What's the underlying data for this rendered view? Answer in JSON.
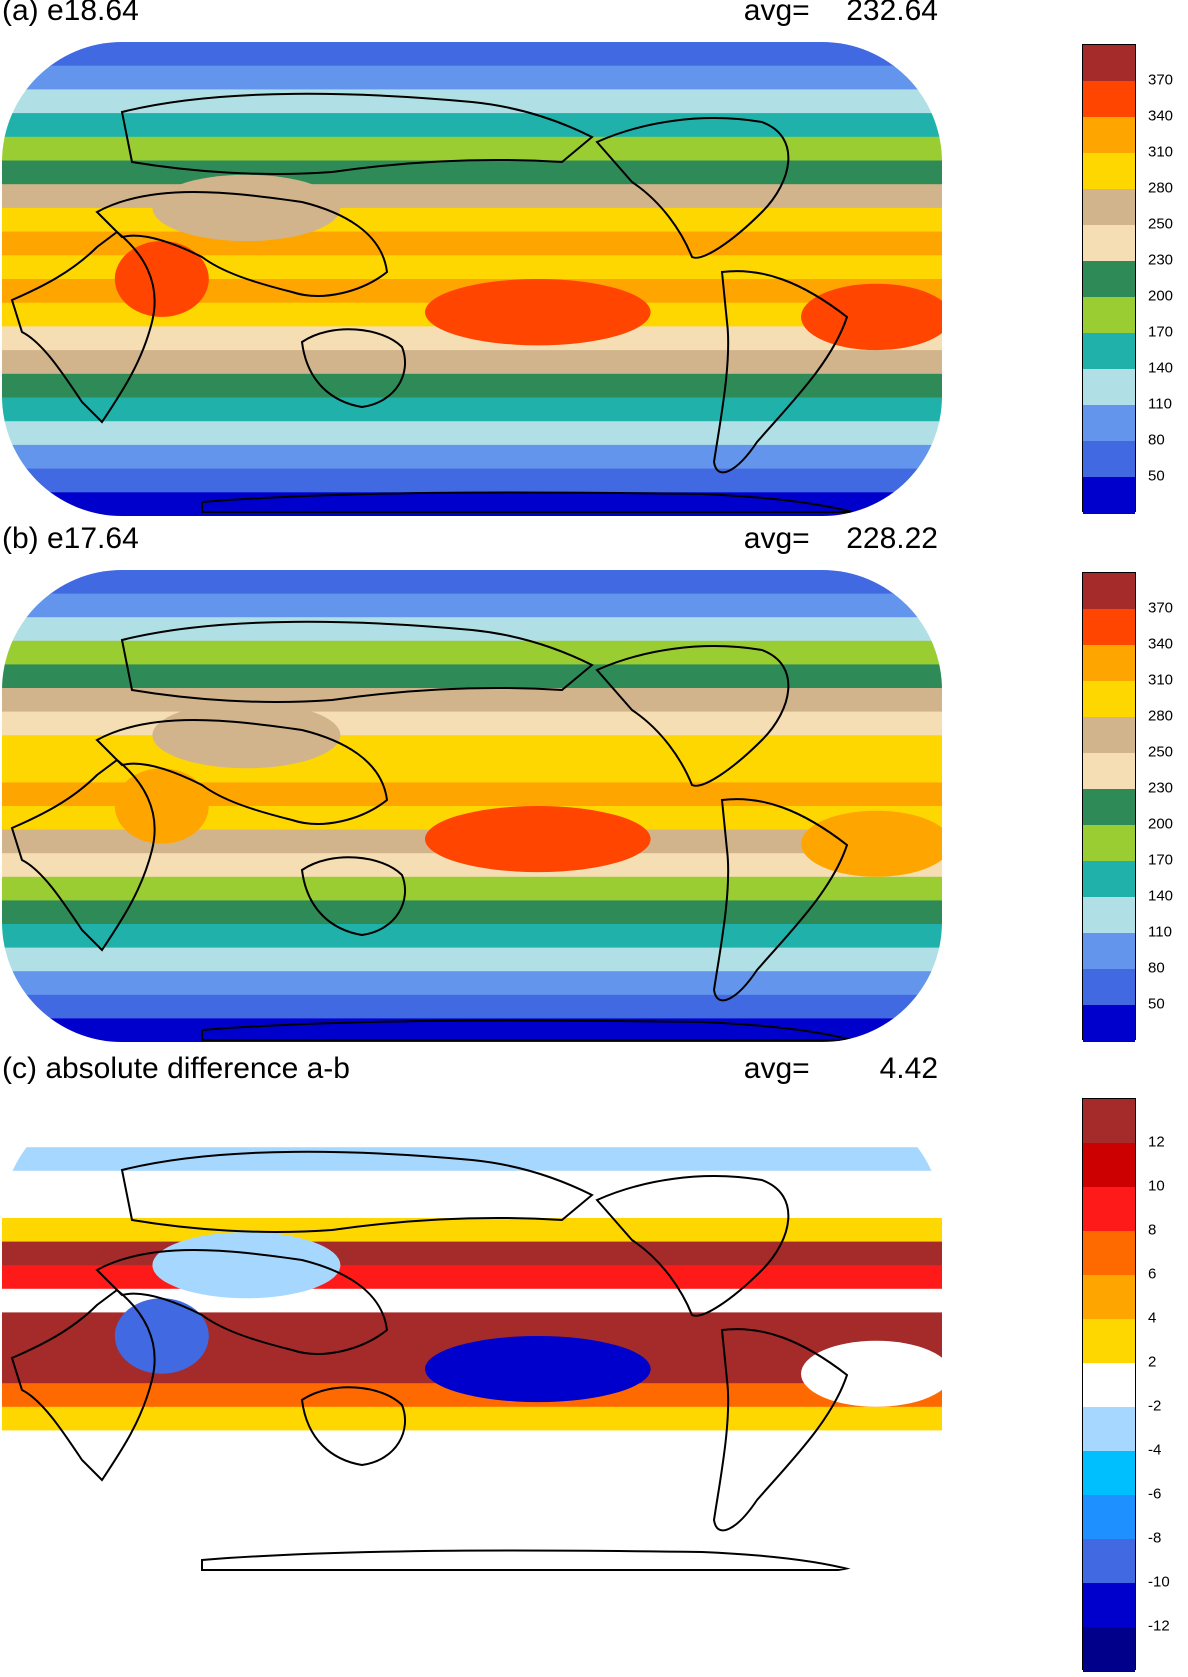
{
  "panels": [
    {
      "id": "a",
      "title": "(a) e18.64",
      "avg_label": "avg=",
      "avg_value": "232.64",
      "colorbar": {
        "labels": [
          "370",
          "340",
          "310",
          "280",
          "250",
          "230",
          "200",
          "170",
          "140",
          "110",
          "80",
          "50"
        ],
        "colors": [
          "#a52a2a",
          "#ff4500",
          "#ffa500",
          "#ffd700",
          "#d2b48c",
          "#f5deb3",
          "#2e8b57",
          "#9acd32",
          "#20b2aa",
          "#b0e0e6",
          "#6495ed",
          "#4169e1",
          "#0000cd"
        ]
      },
      "bands": [
        {
          "color": "#4169e1"
        },
        {
          "color": "#6495ed"
        },
        {
          "color": "#b0e0e6"
        },
        {
          "color": "#20b2aa"
        },
        {
          "color": "#9acd32"
        },
        {
          "color": "#2e8b57"
        },
        {
          "color": "#d2b48c"
        },
        {
          "color": "#ffd700"
        },
        {
          "color": "#ffa500"
        },
        {
          "color": "#ffd700"
        },
        {
          "color": "#ffa500"
        },
        {
          "color": "#ffd700"
        },
        {
          "color": "#f5deb3"
        },
        {
          "color": "#d2b48c"
        },
        {
          "color": "#2e8b57"
        },
        {
          "color": "#20b2aa"
        },
        {
          "color": "#b0e0e6"
        },
        {
          "color": "#6495ed"
        },
        {
          "color": "#4169e1"
        },
        {
          "color": "#0000cd"
        }
      ],
      "blobs": [
        {
          "color": "#ff4500"
        },
        {
          "color": "#ff4500"
        },
        {
          "color": "#ff4500"
        },
        {
          "color": "#d2b48c"
        }
      ]
    },
    {
      "id": "b",
      "title": "(b) e17.64",
      "avg_label": "avg=",
      "avg_value": "228.22",
      "colorbar": {
        "labels": [
          "370",
          "340",
          "310",
          "280",
          "250",
          "230",
          "200",
          "170",
          "140",
          "110",
          "80",
          "50"
        ],
        "colors": [
          "#a52a2a",
          "#ff4500",
          "#ffa500",
          "#ffd700",
          "#d2b48c",
          "#f5deb3",
          "#2e8b57",
          "#9acd32",
          "#20b2aa",
          "#b0e0e6",
          "#6495ed",
          "#4169e1",
          "#0000cd"
        ]
      },
      "bands": [
        {
          "color": "#4169e1"
        },
        {
          "color": "#6495ed"
        },
        {
          "color": "#b0e0e6"
        },
        {
          "color": "#9acd32"
        },
        {
          "color": "#2e8b57"
        },
        {
          "color": "#d2b48c"
        },
        {
          "color": "#f5deb3"
        },
        {
          "color": "#ffd700"
        },
        {
          "color": "#ffd700"
        },
        {
          "color": "#ffa500"
        },
        {
          "color": "#ffd700"
        },
        {
          "color": "#d2b48c"
        },
        {
          "color": "#f5deb3"
        },
        {
          "color": "#9acd32"
        },
        {
          "color": "#2e8b57"
        },
        {
          "color": "#20b2aa"
        },
        {
          "color": "#b0e0e6"
        },
        {
          "color": "#6495ed"
        },
        {
          "color": "#4169e1"
        },
        {
          "color": "#0000cd"
        }
      ],
      "blobs": [
        {
          "color": "#ff4500"
        },
        {
          "color": "#ffa500"
        },
        {
          "color": "#ffa500"
        },
        {
          "color": "#d2b48c"
        }
      ]
    },
    {
      "id": "c",
      "title": "(c) absolute difference a-b",
      "avg_label": "avg=",
      "avg_value": "4.42",
      "colorbar": {
        "labels": [
          "12",
          "10",
          "8",
          "6",
          "4",
          "2",
          "-2",
          "-4",
          "-6",
          "-8",
          "-10",
          "-12"
        ],
        "colors": [
          "#a52a2a",
          "#cc0000",
          "#ff1a1a",
          "#ff6a00",
          "#ffa500",
          "#ffd700",
          "#ffffff",
          "#a6d8ff",
          "#00bfff",
          "#1e90ff",
          "#4169e1",
          "#0000cd",
          "#00008b"
        ]
      },
      "bands": [
        {
          "color": "#ffffff"
        },
        {
          "color": "#ffffff"
        },
        {
          "color": "#a6d8ff"
        },
        {
          "color": "#ffffff"
        },
        {
          "color": "#ffffff"
        },
        {
          "color": "#ffd700"
        },
        {
          "color": "#a52a2a"
        },
        {
          "color": "#ff1a1a"
        },
        {
          "color": "#ffffff"
        },
        {
          "color": "#a52a2a"
        },
        {
          "color": "#a52a2a"
        },
        {
          "color": "#a52a2a"
        },
        {
          "color": "#ff6a00"
        },
        {
          "color": "#ffd700"
        },
        {
          "color": "#ffffff"
        },
        {
          "color": "#ffffff"
        },
        {
          "color": "#ffffff"
        },
        {
          "color": "#ffffff"
        },
        {
          "color": "#ffffff"
        },
        {
          "color": "#ffffff"
        }
      ],
      "blobs": [
        {
          "color": "#0000cd"
        },
        {
          "color": "#4169e1"
        },
        {
          "color": "#ffffff"
        },
        {
          "color": "#a6d8ff"
        }
      ]
    }
  ]
}
